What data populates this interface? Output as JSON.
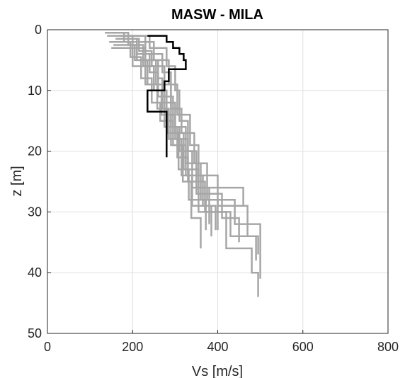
{
  "chart_data": {
    "type": "line",
    "title": "MASW - MILA",
    "xlabel": "Vs [m/s]",
    "ylabel": "z [m]",
    "xlim": [
      0,
      800
    ],
    "ylim": [
      0,
      50
    ],
    "y_reversed": true,
    "xticks": [
      "0",
      "200",
      "400",
      "600",
      "800"
    ],
    "yticks": [
      "0",
      "10",
      "20",
      "30",
      "40",
      "50"
    ],
    "grid": true,
    "colors": {
      "ensemble": "#a6a6a6",
      "best": "#000000",
      "grid": "#e0e0e0",
      "axis": "#262626"
    },
    "series": [
      {
        "role": "best",
        "points": [
          [
            235,
            1
          ],
          [
            280,
            1
          ],
          [
            280,
            2
          ],
          [
            295,
            2
          ],
          [
            295,
            3
          ],
          [
            310,
            3
          ],
          [
            310,
            4
          ],
          [
            320,
            4
          ],
          [
            320,
            5
          ],
          [
            325,
            5
          ],
          [
            325,
            6.5
          ],
          [
            285,
            6.5
          ],
          [
            285,
            8.5
          ],
          [
            275,
            8.5
          ],
          [
            275,
            10
          ],
          [
            235,
            10
          ],
          [
            235,
            13.5
          ],
          [
            280,
            13.5
          ],
          [
            280,
            21
          ]
        ]
      },
      {
        "role": "ensemble",
        "points": [
          [
            150,
            0.5
          ],
          [
            180,
            0.5
          ],
          [
            180,
            2
          ],
          [
            210,
            2
          ],
          [
            210,
            5
          ],
          [
            260,
            5
          ],
          [
            260,
            8
          ],
          [
            270,
            8
          ],
          [
            270,
            12
          ],
          [
            290,
            12
          ],
          [
            290,
            16
          ],
          [
            310,
            16
          ],
          [
            310,
            20
          ],
          [
            340,
            20
          ],
          [
            340,
            26
          ],
          [
            380,
            26
          ],
          [
            380,
            32
          ]
        ]
      },
      {
        "role": "ensemble",
        "points": [
          [
            140,
            1
          ],
          [
            200,
            1
          ],
          [
            200,
            3
          ],
          [
            230,
            3
          ],
          [
            230,
            6
          ],
          [
            250,
            6
          ],
          [
            250,
            10
          ],
          [
            280,
            10
          ],
          [
            280,
            14
          ],
          [
            300,
            14
          ],
          [
            300,
            18
          ],
          [
            330,
            18
          ],
          [
            330,
            22
          ],
          [
            350,
            22
          ],
          [
            350,
            27
          ],
          [
            410,
            27
          ],
          [
            410,
            31
          ],
          [
            450,
            31
          ],
          [
            450,
            35
          ]
        ]
      },
      {
        "role": "ensemble",
        "points": [
          [
            160,
            1.5
          ],
          [
            210,
            1.5
          ],
          [
            210,
            4
          ],
          [
            240,
            4
          ],
          [
            240,
            7
          ],
          [
            260,
            7
          ],
          [
            260,
            11
          ],
          [
            275,
            11
          ],
          [
            275,
            16
          ],
          [
            305,
            16
          ],
          [
            305,
            21
          ],
          [
            330,
            21
          ],
          [
            330,
            25
          ],
          [
            370,
            25
          ],
          [
            370,
            30
          ],
          [
            430,
            30
          ],
          [
            430,
            34
          ],
          [
            490,
            34
          ],
          [
            490,
            38
          ]
        ]
      },
      {
        "role": "ensemble",
        "points": [
          [
            135,
            0.5
          ],
          [
            190,
            0.5
          ],
          [
            190,
            2.5
          ],
          [
            225,
            2.5
          ],
          [
            225,
            5
          ],
          [
            255,
            5
          ],
          [
            255,
            9
          ],
          [
            290,
            9
          ],
          [
            290,
            13
          ],
          [
            315,
            13
          ],
          [
            315,
            17
          ],
          [
            345,
            17
          ],
          [
            345,
            22
          ],
          [
            360,
            22
          ],
          [
            360,
            28
          ],
          [
            400,
            28
          ],
          [
            400,
            33
          ]
        ]
      },
      {
        "role": "ensemble",
        "points": [
          [
            170,
            1
          ],
          [
            230,
            1
          ],
          [
            230,
            4
          ],
          [
            270,
            4
          ],
          [
            270,
            7
          ],
          [
            290,
            7
          ],
          [
            290,
            12
          ],
          [
            300,
            12
          ],
          [
            300,
            17
          ],
          [
            320,
            17
          ],
          [
            320,
            23
          ],
          [
            355,
            23
          ],
          [
            355,
            30
          ],
          [
            420,
            30
          ],
          [
            420,
            36
          ],
          [
            480,
            36
          ],
          [
            480,
            40
          ],
          [
            495,
            40
          ],
          [
            495,
            44
          ]
        ]
      },
      {
        "role": "ensemble",
        "points": [
          [
            145,
            2
          ],
          [
            195,
            2
          ],
          [
            195,
            4.5
          ],
          [
            220,
            4.5
          ],
          [
            220,
            8
          ],
          [
            245,
            8
          ],
          [
            245,
            12
          ],
          [
            265,
            12
          ],
          [
            265,
            15
          ],
          [
            295,
            15
          ],
          [
            295,
            19
          ],
          [
            325,
            19
          ],
          [
            325,
            24
          ],
          [
            365,
            24
          ],
          [
            365,
            29
          ],
          [
            395,
            29
          ],
          [
            395,
            33
          ]
        ]
      },
      {
        "role": "ensemble",
        "points": [
          [
            180,
            1
          ],
          [
            240,
            1
          ],
          [
            240,
            3
          ],
          [
            280,
            3
          ],
          [
            280,
            6
          ],
          [
            300,
            6
          ],
          [
            300,
            10
          ],
          [
            310,
            10
          ],
          [
            310,
            15
          ],
          [
            330,
            15
          ],
          [
            330,
            20
          ],
          [
            350,
            20
          ],
          [
            350,
            26
          ],
          [
            460,
            26
          ],
          [
            460,
            29
          ]
        ]
      },
      {
        "role": "ensemble",
        "points": [
          [
            155,
            2.5
          ],
          [
            205,
            2.5
          ],
          [
            205,
            5
          ],
          [
            235,
            5
          ],
          [
            235,
            9
          ],
          [
            270,
            9
          ],
          [
            270,
            13
          ],
          [
            285,
            13
          ],
          [
            285,
            18
          ],
          [
            315,
            18
          ],
          [
            315,
            24
          ],
          [
            340,
            24
          ],
          [
            340,
            29
          ],
          [
            385,
            29
          ],
          [
            385,
            34
          ]
        ]
      },
      {
        "role": "ensemble",
        "points": [
          [
            165,
            1.5
          ],
          [
            215,
            1.5
          ],
          [
            215,
            3.5
          ],
          [
            245,
            3.5
          ],
          [
            245,
            6
          ],
          [
            275,
            6
          ],
          [
            275,
            11
          ],
          [
            295,
            11
          ],
          [
            295,
            16
          ],
          [
            325,
            16
          ],
          [
            325,
            22
          ],
          [
            375,
            22
          ],
          [
            375,
            28
          ],
          [
            440,
            28
          ],
          [
            440,
            32
          ],
          [
            500,
            32
          ],
          [
            500,
            41
          ]
        ]
      },
      {
        "role": "ensemble",
        "points": [
          [
            175,
            3
          ],
          [
            225,
            3
          ],
          [
            225,
            6
          ],
          [
            250,
            6
          ],
          [
            250,
            10
          ],
          [
            268,
            10
          ],
          [
            268,
            14
          ],
          [
            290,
            14
          ],
          [
            290,
            19
          ],
          [
            318,
            19
          ],
          [
            318,
            25
          ],
          [
            338,
            25
          ],
          [
            338,
            31
          ],
          [
            360,
            31
          ],
          [
            360,
            36
          ]
        ]
      },
      {
        "role": "ensemble",
        "points": [
          [
            190,
            2
          ],
          [
            250,
            2
          ],
          [
            250,
            5
          ],
          [
            285,
            5
          ],
          [
            285,
            9
          ],
          [
            305,
            9
          ],
          [
            305,
            14
          ],
          [
            335,
            14
          ],
          [
            335,
            19
          ],
          [
            355,
            19
          ],
          [
            355,
            24
          ],
          [
            400,
            24
          ],
          [
            400,
            29
          ],
          [
            470,
            29
          ],
          [
            470,
            34
          ],
          [
            495,
            34
          ],
          [
            495,
            37
          ]
        ]
      },
      {
        "role": "ensemble",
        "points": [
          [
            150,
            3
          ],
          [
            200,
            3
          ],
          [
            200,
            6
          ],
          [
            230,
            6
          ],
          [
            230,
            9
          ],
          [
            258,
            9
          ],
          [
            258,
            13
          ],
          [
            282,
            13
          ],
          [
            282,
            17
          ],
          [
            308,
            17
          ],
          [
            308,
            23
          ],
          [
            332,
            23
          ],
          [
            332,
            28
          ],
          [
            372,
            28
          ],
          [
            372,
            33
          ]
        ]
      }
    ]
  }
}
